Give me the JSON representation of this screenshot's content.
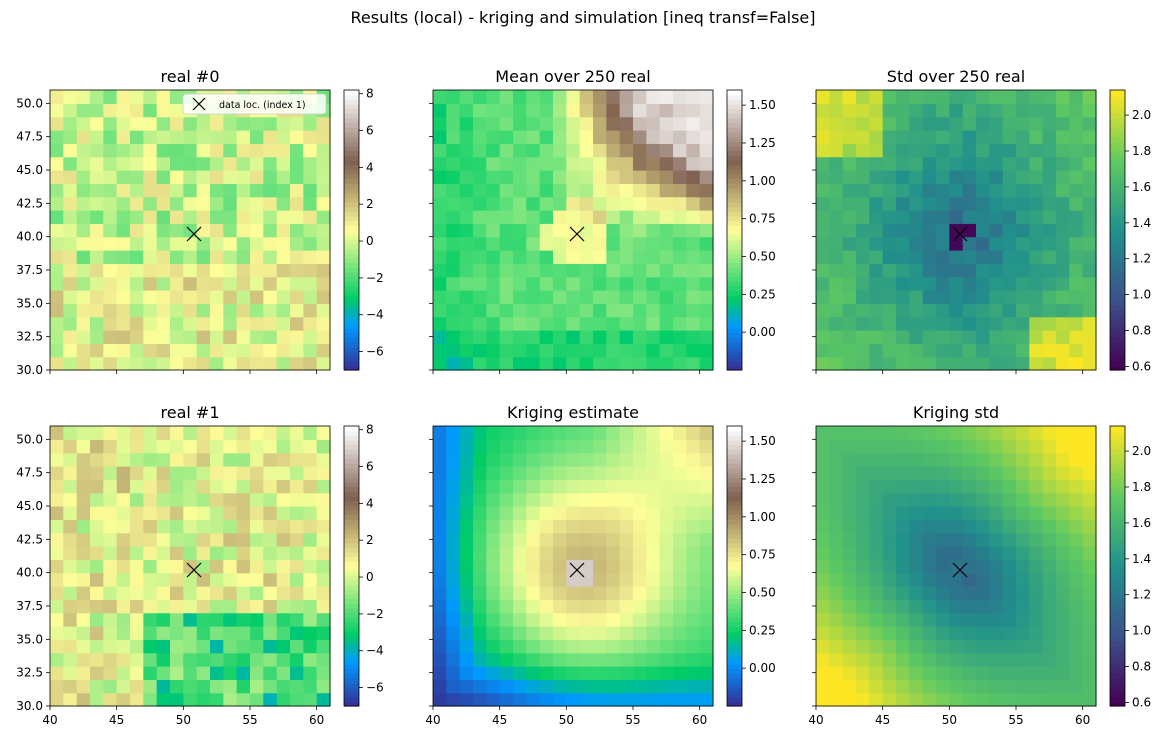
{
  "figure": {
    "suptitle": "Results (local) - kriging and simulation [ineq transf=False]"
  },
  "colors": {
    "terrain_stops": [
      "#333399",
      "#0099ff",
      "#00cc66",
      "#ffff99",
      "#7f5f4f",
      "#ffffff"
    ],
    "viridis_stops": [
      "#440154",
      "#3b528b",
      "#21918c",
      "#5ec962",
      "#fde725"
    ],
    "marker": "#000000"
  },
  "chart_data": [
    {
      "type": "heatmap",
      "title": "real #0",
      "colormap": "terrain",
      "grid": "21x21 cells",
      "xlim": [
        40,
        61
      ],
      "ylim": [
        30,
        51
      ],
      "xticks": [],
      "yticks": [
        "30.0",
        "32.5",
        "35.0",
        "37.5",
        "40.0",
        "42.5",
        "45.0",
        "47.5",
        "50.0"
      ],
      "colorbar": {
        "min": -7,
        "max": 8.2,
        "ticks": [
          "−6",
          "−4",
          "−2",
          "0",
          "2",
          "4",
          "6",
          "8"
        ]
      },
      "data_point": {
        "x": 50.8,
        "y": 40.2
      },
      "legend": {
        "label": "data loc. (index 1)",
        "placement": "upper right"
      }
    },
    {
      "type": "heatmap",
      "title": "Mean over 250 real",
      "colormap": "terrain",
      "grid": "21x21 cells",
      "xlim": [
        40,
        61
      ],
      "ylim": [
        30,
        51
      ],
      "colorbar": {
        "min": -0.25,
        "max": 1.6,
        "ticks": [
          "0.00",
          "0.25",
          "0.50",
          "0.75",
          "1.00",
          "1.25",
          "1.50"
        ]
      },
      "data_point": {
        "x": 50.8,
        "y": 40.2
      }
    },
    {
      "type": "heatmap",
      "title": "Std over 250 real",
      "colormap": "viridis",
      "grid": "21x21 cells",
      "xlim": [
        40,
        61
      ],
      "ylim": [
        30,
        51
      ],
      "colorbar": {
        "min": 0.58,
        "max": 2.14,
        "ticks": [
          "0.6",
          "0.8",
          "1.0",
          "1.2",
          "1.4",
          "1.6",
          "1.8",
          "2.0"
        ]
      },
      "data_point": {
        "x": 50.8,
        "y": 40.2
      }
    },
    {
      "type": "heatmap",
      "title": "real #1",
      "colormap": "terrain",
      "grid": "21x21 cells",
      "xlim": [
        40,
        61
      ],
      "ylim": [
        30,
        51
      ],
      "xticks": [
        "40",
        "45",
        "50",
        "55",
        "60"
      ],
      "yticks": [
        "30.0",
        "32.5",
        "35.0",
        "37.5",
        "40.0",
        "42.5",
        "45.0",
        "47.5",
        "50.0"
      ],
      "colorbar": {
        "min": -7,
        "max": 8.2,
        "ticks": [
          "−6",
          "−4",
          "−2",
          "0",
          "2",
          "4",
          "6",
          "8"
        ]
      },
      "data_point": {
        "x": 50.8,
        "y": 40.2
      }
    },
    {
      "type": "heatmap",
      "title": "Kriging estimate",
      "colormap": "terrain",
      "grid": "21x21 cells",
      "xlim": [
        40,
        61
      ],
      "ylim": [
        30,
        51
      ],
      "xticks": [
        "40",
        "45",
        "50",
        "55",
        "60"
      ],
      "colorbar": {
        "min": -0.25,
        "max": 1.6,
        "ticks": [
          "0.00",
          "0.25",
          "0.50",
          "0.75",
          "1.00",
          "1.25",
          "1.50"
        ]
      },
      "data_point": {
        "x": 50.8,
        "y": 40.2
      }
    },
    {
      "type": "heatmap",
      "title": "Kriging std",
      "colormap": "viridis",
      "grid": "21x21 cells",
      "xlim": [
        40,
        61
      ],
      "ylim": [
        30,
        51
      ],
      "xticks": [
        "40",
        "45",
        "50",
        "55",
        "60"
      ],
      "colorbar": {
        "min": 0.58,
        "max": 2.14,
        "ticks": [
          "0.6",
          "0.8",
          "1.0",
          "1.2",
          "1.4",
          "1.6",
          "1.8",
          "2.0"
        ]
      },
      "data_point": {
        "x": 50.8,
        "y": 40.2
      }
    }
  ]
}
